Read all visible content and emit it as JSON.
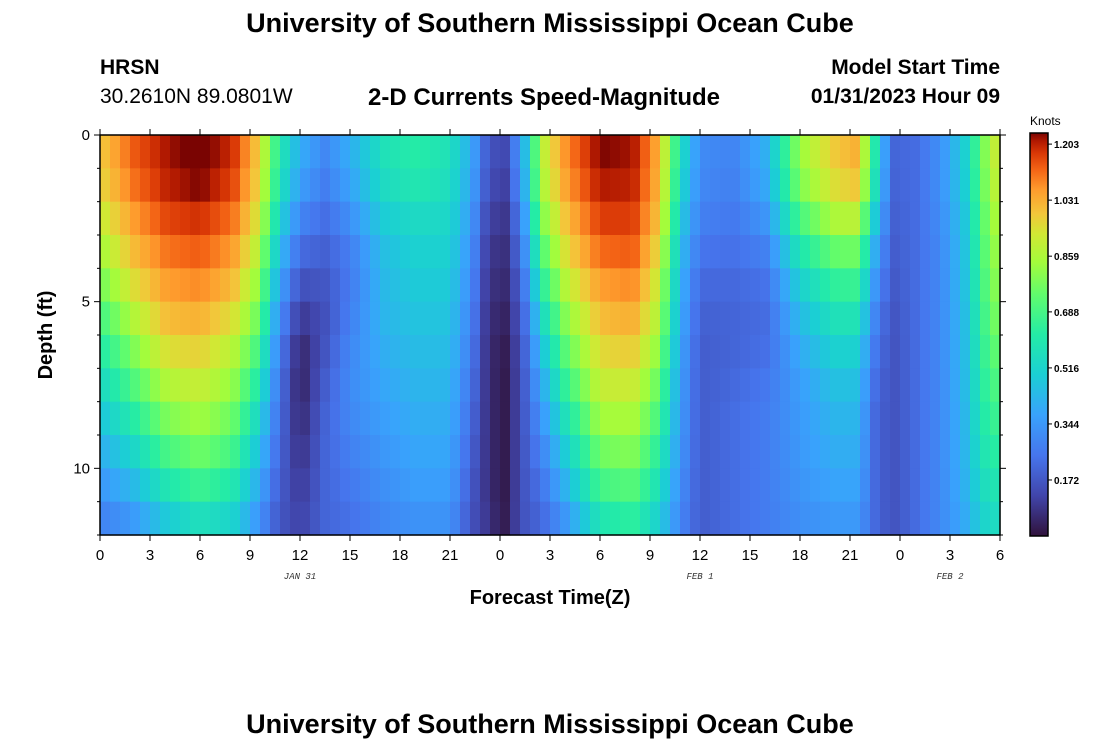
{
  "page": {
    "title": "University of Southern Mississippi Ocean Cube",
    "footer_title": "University of Southern Mississippi Ocean Cube"
  },
  "station": {
    "name": "HRSN",
    "coordinates": "30.2610N  89.0801W"
  },
  "model_start": {
    "label": "Model Start Time",
    "value": "01/31/2023 Hour 09"
  },
  "chart_data": {
    "type": "heatmap",
    "title": "2-D Currents Speed-Magnitude",
    "xlabel": "Forecast Time(Z)",
    "ylabel": "Depth (ft)",
    "x_tick_labels": [
      "0",
      "3",
      "6",
      "9",
      "12",
      "15",
      "18",
      "21",
      "0",
      "3",
      "6",
      "9",
      "12",
      "15",
      "18",
      "21",
      "0",
      "3",
      "6"
    ],
    "x_range_hours": [
      0,
      54
    ],
    "date_labels": [
      {
        "text": "JAN 31",
        "hour": 12
      },
      {
        "text": "FEB 1",
        "hour": 36
      },
      {
        "text": "FEB 2",
        "hour": 51
      }
    ],
    "y_ticks": [
      0,
      5,
      10
    ],
    "y_range_ft": [
      0,
      12
    ],
    "colorbar": {
      "title": "Knots",
      "ticks": [
        "1.203",
        "1.031",
        "0.859",
        "0.688",
        "0.516",
        "0.344",
        "0.172"
      ],
      "tick_values": [
        1.203,
        1.031,
        0.859,
        0.688,
        0.516,
        0.344,
        0.172
      ],
      "range": [
        0.0,
        1.2
      ]
    },
    "grid": {
      "hours_per_column": 0.6,
      "columns": 90,
      "depth_levels_ft": [
        0,
        1,
        2,
        3,
        4,
        5,
        6,
        7,
        8,
        9,
        10,
        11,
        12
      ]
    },
    "profiles": [
      {
        "hour": 0.0,
        "speed": [
          0.95,
          0.95,
          0.9,
          0.85,
          0.78,
          0.7,
          0.62,
          0.55,
          0.48,
          0.42,
          0.36,
          0.3,
          0.25
        ]
      },
      {
        "hour": 2.0,
        "speed": [
          1.1,
          1.1,
          1.05,
          1.0,
          0.95,
          0.88,
          0.8,
          0.72,
          0.64,
          0.55,
          0.46,
          0.38,
          0.3
        ]
      },
      {
        "hour": 4.0,
        "speed": [
          1.18,
          1.18,
          1.15,
          1.1,
          1.05,
          1.0,
          0.95,
          0.88,
          0.8,
          0.72,
          0.62,
          0.52,
          0.42
        ]
      },
      {
        "hour": 6.0,
        "speed": [
          1.22,
          1.22,
          1.18,
          1.12,
          1.08,
          1.02,
          0.97,
          0.91,
          0.85,
          0.78,
          0.7,
          0.6,
          0.5
        ]
      },
      {
        "hour": 8.0,
        "speed": [
          1.15,
          1.15,
          1.1,
          1.05,
          1.0,
          0.95,
          0.88,
          0.82,
          0.76,
          0.7,
          0.62,
          0.54,
          0.46
        ]
      },
      {
        "hour": 9.5,
        "speed": [
          0.95,
          0.95,
          0.92,
          0.88,
          0.82,
          0.76,
          0.7,
          0.62,
          0.55,
          0.48,
          0.42,
          0.36,
          0.3
        ]
      },
      {
        "hour": 10.7,
        "speed": [
          0.6,
          0.6,
          0.55,
          0.48,
          0.42,
          0.35,
          0.3,
          0.26,
          0.24,
          0.22,
          0.2,
          0.18,
          0.16
        ]
      },
      {
        "hour": 12.0,
        "speed": [
          0.4,
          0.38,
          0.32,
          0.25,
          0.18,
          0.12,
          0.06,
          0.03,
          0.04,
          0.06,
          0.08,
          0.1,
          0.12
        ]
      },
      {
        "hour": 13.5,
        "speed": [
          0.3,
          0.28,
          0.25,
          0.2,
          0.18,
          0.15,
          0.15,
          0.17,
          0.19,
          0.2,
          0.2,
          0.2,
          0.2
        ]
      },
      {
        "hour": 15.0,
        "speed": [
          0.4,
          0.38,
          0.34,
          0.28,
          0.25,
          0.26,
          0.28,
          0.3,
          0.3,
          0.28,
          0.26,
          0.24,
          0.22
        ]
      },
      {
        "hour": 17.0,
        "speed": [
          0.55,
          0.55,
          0.5,
          0.45,
          0.42,
          0.42,
          0.4,
          0.38,
          0.36,
          0.34,
          0.32,
          0.3,
          0.28
        ]
      },
      {
        "hour": 19.0,
        "speed": [
          0.6,
          0.6,
          0.55,
          0.5,
          0.48,
          0.46,
          0.44,
          0.42,
          0.4,
          0.38,
          0.36,
          0.34,
          0.3
        ]
      },
      {
        "hour": 21.0,
        "speed": [
          0.55,
          0.55,
          0.52,
          0.5,
          0.48,
          0.46,
          0.44,
          0.42,
          0.4,
          0.38,
          0.36,
          0.34,
          0.3
        ]
      },
      {
        "hour": 22.3,
        "speed": [
          0.38,
          0.38,
          0.35,
          0.32,
          0.3,
          0.28,
          0.26,
          0.24,
          0.22,
          0.2,
          0.18,
          0.16,
          0.15
        ]
      },
      {
        "hour": 23.2,
        "speed": [
          0.18,
          0.18,
          0.15,
          0.12,
          0.1,
          0.09,
          0.08,
          0.08,
          0.08,
          0.08,
          0.08,
          0.08,
          0.1
        ]
      },
      {
        "hour": 24.2,
        "speed": [
          0.12,
          0.1,
          0.08,
          0.06,
          0.05,
          0.04,
          0.02,
          0.01,
          0.01,
          0.01,
          0.01,
          0.01,
          0.02
        ]
      },
      {
        "hour": 25.3,
        "speed": [
          0.35,
          0.35,
          0.3,
          0.26,
          0.22,
          0.18,
          0.16,
          0.15,
          0.15,
          0.15,
          0.15,
          0.15,
          0.15
        ]
      },
      {
        "hour": 26.5,
        "speed": [
          0.85,
          0.85,
          0.8,
          0.72,
          0.65,
          0.55,
          0.48,
          0.4,
          0.35,
          0.3,
          0.26,
          0.22,
          0.2
        ]
      },
      {
        "hour": 28.0,
        "speed": [
          1.05,
          1.05,
          1.0,
          0.95,
          0.9,
          0.82,
          0.75,
          0.68,
          0.6,
          0.52,
          0.45,
          0.38,
          0.3
        ]
      },
      {
        "hour": 30.0,
        "speed": [
          1.2,
          1.2,
          1.15,
          1.12,
          1.05,
          1.0,
          0.95,
          0.9,
          0.85,
          0.78,
          0.7,
          0.62,
          0.52
        ]
      },
      {
        "hour": 32.0,
        "speed": [
          1.18,
          1.18,
          1.15,
          1.12,
          1.08,
          1.02,
          0.98,
          0.92,
          0.86,
          0.8,
          0.74,
          0.66,
          0.58
        ]
      },
      {
        "hour": 33.5,
        "speed": [
          1.0,
          1.0,
          0.98,
          0.95,
          0.9,
          0.86,
          0.82,
          0.75,
          0.7,
          0.64,
          0.58,
          0.52,
          0.46
        ]
      },
      {
        "hour": 34.8,
        "speed": [
          0.55,
          0.55,
          0.5,
          0.46,
          0.42,
          0.4,
          0.38,
          0.36,
          0.35,
          0.34,
          0.32,
          0.3,
          0.28
        ]
      },
      {
        "hour": 36.0,
        "speed": [
          0.3,
          0.3,
          0.28,
          0.26,
          0.22,
          0.2,
          0.18,
          0.18,
          0.18,
          0.18,
          0.18,
          0.18,
          0.18
        ]
      },
      {
        "hour": 38.0,
        "speed": [
          0.28,
          0.28,
          0.26,
          0.24,
          0.22,
          0.2,
          0.2,
          0.2,
          0.22,
          0.22,
          0.22,
          0.22,
          0.22
        ]
      },
      {
        "hour": 40.0,
        "speed": [
          0.4,
          0.4,
          0.36,
          0.3,
          0.25,
          0.22,
          0.22,
          0.24,
          0.26,
          0.26,
          0.26,
          0.26,
          0.26
        ]
      },
      {
        "hour": 42.0,
        "speed": [
          0.8,
          0.8,
          0.72,
          0.62,
          0.52,
          0.45,
          0.4,
          0.36,
          0.34,
          0.34,
          0.33,
          0.32,
          0.3
        ]
      },
      {
        "hour": 44.0,
        "speed": [
          0.95,
          0.95,
          0.88,
          0.78,
          0.66,
          0.58,
          0.52,
          0.46,
          0.42,
          0.4,
          0.38,
          0.35,
          0.32
        ]
      },
      {
        "hour": 45.5,
        "speed": [
          1.0,
          1.0,
          0.92,
          0.8,
          0.68,
          0.6,
          0.52,
          0.46,
          0.42,
          0.4,
          0.38,
          0.35,
          0.32
        ]
      },
      {
        "hour": 46.4,
        "speed": [
          0.62,
          0.62,
          0.55,
          0.45,
          0.38,
          0.32,
          0.28,
          0.25,
          0.22,
          0.22,
          0.22,
          0.22,
          0.22
        ]
      },
      {
        "hour": 47.5,
        "speed": [
          0.2,
          0.2,
          0.19,
          0.18,
          0.17,
          0.16,
          0.15,
          0.15,
          0.15,
          0.15,
          0.15,
          0.15,
          0.15
        ]
      },
      {
        "hour": 49.0,
        "speed": [
          0.22,
          0.22,
          0.22,
          0.22,
          0.22,
          0.22,
          0.22,
          0.22,
          0.22,
          0.22,
          0.22,
          0.22,
          0.22
        ]
      },
      {
        "hour": 50.5,
        "speed": [
          0.32,
          0.32,
          0.32,
          0.3,
          0.3,
          0.3,
          0.3,
          0.3,
          0.3,
          0.3,
          0.3,
          0.3,
          0.3
        ]
      },
      {
        "hour": 52.0,
        "speed": [
          0.5,
          0.5,
          0.48,
          0.46,
          0.46,
          0.45,
          0.44,
          0.44,
          0.43,
          0.42,
          0.42,
          0.4,
          0.38
        ]
      },
      {
        "hour": 53.0,
        "speed": [
          0.75,
          0.75,
          0.72,
          0.7,
          0.68,
          0.66,
          0.64,
          0.62,
          0.6,
          0.58,
          0.55,
          0.52,
          0.48
        ]
      },
      {
        "hour": 54.0,
        "speed": [
          0.92,
          0.92,
          0.88,
          0.85,
          0.82,
          0.8,
          0.76,
          0.72,
          0.68,
          0.64,
          0.6,
          0.56,
          0.52
        ]
      }
    ]
  }
}
